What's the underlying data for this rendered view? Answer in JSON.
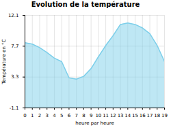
{
  "chart_data": {
    "type": "area",
    "title": "Evolution de la température",
    "x_label": "heure par heure",
    "y_label": "Température en °C",
    "x": [
      0,
      1,
      2,
      3,
      4,
      5,
      6,
      7,
      8,
      9,
      10,
      11,
      12,
      13,
      14,
      15,
      16,
      17,
      18,
      19
    ],
    "values": [
      8.2,
      8.0,
      7.5,
      6.8,
      6.0,
      5.5,
      3.2,
      3.0,
      3.4,
      4.5,
      6.2,
      7.8,
      9.2,
      10.8,
      11.0,
      10.8,
      10.3,
      9.5,
      7.8,
      5.5
    ],
    "color": "#7dcfea",
    "xlim": [
      0,
      19
    ],
    "xticks": [
      0,
      1,
      2,
      3,
      4,
      5,
      6,
      7,
      8,
      9,
      10,
      11,
      12,
      13,
      14,
      15,
      16,
      17,
      18,
      19
    ],
    "ylim": [
      -1.1,
      12.1
    ],
    "yticks": [
      -1.1,
      3.3,
      7.7,
      12.1
    ],
    "grid": true
  }
}
